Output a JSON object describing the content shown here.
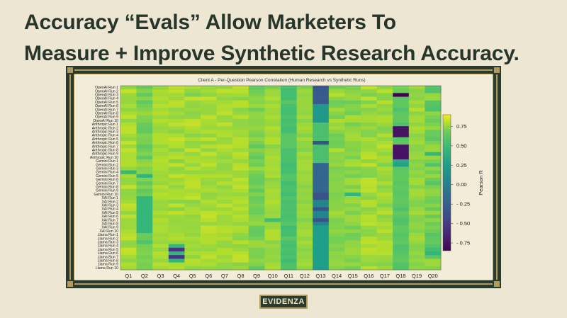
{
  "headline": {
    "line1": "Accuracy “Evals” Allow Marketers To",
    "line2": "Measure + Improve Synthetic Research Accuracy."
  },
  "logo_text": "EVIDENZA",
  "colors": {
    "background": "#ede6d3",
    "headline": "#27352b",
    "frame_dark": "#2a3a2c",
    "frame_gold": "#b29a5c"
  },
  "chart_data": {
    "type": "heatmap",
    "title": "Client A - Per-Question Pearson Correlation (Human Research vs Synthetic Runs)",
    "x_categories": [
      "Q1",
      "Q2",
      "Q3",
      "Q4",
      "Q5",
      "Q6",
      "Q7",
      "Q8",
      "Q9",
      "Q10",
      "Q11",
      "Q12",
      "Q13",
      "Q14",
      "Q15",
      "Q16",
      "Q17",
      "Q18",
      "Q19",
      "Q20"
    ],
    "y_categories": [
      "OpenAI Run 1",
      "OpenAI Run 2",
      "OpenAI Run 3",
      "OpenAI Run 4",
      "OpenAI Run 5",
      "OpenAI Run 6",
      "OpenAI Run 7",
      "OpenAI Run 8",
      "OpenAI Run 9",
      "OpenAI Run 10",
      "Anthropic Run 1",
      "Anthropic Run 2",
      "Anthropic Run 3",
      "Anthropic Run 4",
      "Anthropic Run 5",
      "Anthropic Run 6",
      "Anthropic Run 7",
      "Anthropic Run 8",
      "Anthropic Run 9",
      "Anthropic Run 10",
      "Gemini Run 1",
      "Gemini Run 2",
      "Gemini Run 3",
      "Gemini Run 4",
      "Gemini Run 5",
      "Gemini Run 6",
      "Gemini Run 7",
      "Gemini Run 8",
      "Gemini Run 9",
      "Gemini Run 10",
      "XAI Run 1",
      "XAI Run 2",
      "XAI Run 3",
      "XAI Run 4",
      "XAI Run 5",
      "XAI Run 6",
      "XAI Run 7",
      "XAI Run 8",
      "XAI Run 9",
      "XAI Run 10",
      "Llama Run 1",
      "Llama Run 2",
      "Llama Run 3",
      "Llama Run 4",
      "Llama Run 5",
      "Llama Run 6",
      "Llama Run 7",
      "Llama Run 8",
      "Llama Run 9",
      "Llama Run 10"
    ],
    "colorbar": {
      "label": "Pearson R",
      "ticks": [
        0.75,
        0.5,
        0.25,
        0.0,
        -0.25,
        -0.5,
        -0.75
      ],
      "tick_labels": [
        "0.75",
        "0.50",
        "0.25",
        "0.00",
        "- 0.25",
        "- 0.50",
        "- 0.75"
      ],
      "vmin": -0.85,
      "vmax": 0.9,
      "colormap": "viridis"
    },
    "values": [
      [
        0.74,
        0.68,
        0.74,
        0.8,
        0.78,
        0.75,
        0.76,
        0.81,
        0.65,
        0.71,
        0.54,
        0.72,
        -0.3,
        0.7,
        0.71,
        0.81,
        0.74,
        0.7,
        0.76,
        0.59
      ],
      [
        0.82,
        0.72,
        0.78,
        0.81,
        0.74,
        0.77,
        0.81,
        0.8,
        0.69,
        0.76,
        0.52,
        0.76,
        -0.3,
        0.76,
        0.73,
        0.74,
        0.8,
        0.69,
        0.73,
        0.58
      ],
      [
        0.76,
        0.65,
        0.77,
        0.77,
        0.71,
        0.74,
        0.77,
        0.77,
        0.71,
        0.76,
        0.52,
        0.74,
        -0.3,
        0.8,
        0.75,
        0.71,
        0.73,
        -0.85,
        0.74,
        0.75
      ],
      [
        0.75,
        0.73,
        0.79,
        0.76,
        0.82,
        0.82,
        0.74,
        0.73,
        0.74,
        0.79,
        0.53,
        0.75,
        -0.3,
        0.73,
        0.75,
        0.81,
        0.73,
        0.61,
        0.73,
        0.76
      ],
      [
        0.75,
        0.64,
        0.77,
        0.81,
        0.75,
        0.77,
        0.77,
        0.8,
        0.73,
        0.75,
        0.61,
        0.75,
        -0.3,
        0.69,
        0.69,
        0.72,
        0.8,
        0.64,
        0.77,
        0.61
      ],
      [
        0.78,
        0.7,
        0.8,
        0.8,
        0.74,
        0.75,
        0.79,
        0.8,
        0.76,
        0.78,
        0.54,
        0.75,
        0.2,
        0.7,
        0.73,
        0.78,
        0.74,
        0.63,
        0.74,
        0.58
      ],
      [
        0.74,
        0.72,
        0.77,
        0.74,
        0.76,
        0.75,
        0.79,
        0.73,
        0.69,
        0.76,
        0.52,
        0.75,
        0.2,
        0.77,
        0.72,
        0.72,
        0.76,
        0.57,
        0.8,
        0.58
      ],
      [
        0.78,
        0.76,
        0.8,
        0.77,
        0.73,
        0.75,
        0.81,
        0.75,
        0.74,
        0.76,
        0.53,
        0.74,
        0.2,
        0.73,
        0.69,
        0.75,
        0.73,
        0.63,
        0.73,
        0.74
      ],
      [
        0.81,
        0.72,
        0.76,
        0.74,
        0.74,
        0.81,
        0.75,
        0.8,
        0.74,
        0.78,
        0.57,
        0.77,
        0.2,
        0.7,
        0.78,
        0.77,
        0.78,
        0.64,
        0.77,
        0.71
      ],
      [
        0.74,
        0.71,
        0.79,
        0.78,
        0.81,
        0.78,
        0.76,
        0.74,
        0.73,
        0.76,
        0.53,
        0.73,
        0.2,
        0.78,
        0.77,
        0.77,
        0.78,
        0.63,
        0.77,
        0.67
      ],
      [
        0.79,
        0.67,
        0.77,
        0.81,
        0.82,
        0.77,
        0.81,
        0.74,
        0.73,
        0.75,
        0.57,
        0.76,
        0.55,
        0.75,
        0.7,
        0.73,
        0.76,
        0.57,
        0.74,
        0.71
      ],
      [
        0.81,
        0.65,
        0.75,
        0.76,
        0.79,
        0.76,
        0.76,
        0.75,
        0.75,
        0.79,
        0.52,
        0.77,
        0.55,
        0.77,
        0.74,
        0.76,
        0.72,
        -0.75,
        0.78,
        0.75
      ],
      [
        0.81,
        0.65,
        0.76,
        0.73,
        0.77,
        0.79,
        0.78,
        0.77,
        0.72,
        0.77,
        0.53,
        0.76,
        0.55,
        0.73,
        0.75,
        0.72,
        0.73,
        -0.75,
        0.77,
        0.67
      ],
      [
        0.77,
        0.72,
        0.79,
        0.78,
        0.73,
        0.74,
        0.79,
        0.76,
        0.7,
        0.76,
        0.62,
        0.72,
        0.55,
        0.69,
        0.77,
        0.72,
        0.79,
        -0.75,
        0.73,
        0.67
      ],
      [
        0.75,
        0.71,
        0.79,
        0.82,
        0.78,
        0.81,
        0.75,
        0.8,
        0.74,
        0.79,
        0.61,
        0.77,
        0.55,
        0.7,
        0.77,
        0.78,
        0.74,
        0.61,
        0.75,
        0.63
      ],
      [
        0.82,
        0.71,
        0.79,
        0.8,
        0.74,
        0.74,
        0.76,
        0.8,
        0.71,
        0.79,
        0.62,
        0.74,
        -0.35,
        0.69,
        0.73,
        0.76,
        0.78,
        0.63,
        0.77,
        0.71
      ],
      [
        0.76,
        0.64,
        0.75,
        0.79,
        0.75,
        0.8,
        0.81,
        0.79,
        0.65,
        0.73,
        0.61,
        0.74,
        0.55,
        0.7,
        0.73,
        0.75,
        0.81,
        -0.75,
        0.73,
        0.75
      ],
      [
        0.82,
        0.69,
        0.78,
        0.73,
        0.82,
        0.74,
        0.78,
        0.76,
        0.73,
        0.76,
        0.55,
        0.72,
        0.55,
        0.79,
        0.72,
        0.76,
        0.77,
        -0.75,
        0.73,
        0.76
      ],
      [
        0.78,
        0.72,
        0.76,
        0.78,
        0.75,
        0.82,
        0.76,
        0.81,
        0.7,
        0.76,
        0.56,
        0.77,
        0.55,
        0.73,
        0.74,
        0.8,
        0.74,
        -0.75,
        0.75,
        0.47
      ],
      [
        0.78,
        0.64,
        0.78,
        0.8,
        0.78,
        0.77,
        0.74,
        0.79,
        0.65,
        0.78,
        0.56,
        0.75,
        0.55,
        0.74,
        0.71,
        0.81,
        0.78,
        -0.75,
        0.76,
        0.75
      ],
      [
        0.79,
        0.73,
        0.8,
        0.73,
        0.79,
        0.78,
        0.77,
        0.75,
        0.71,
        0.77,
        0.56,
        0.77,
        0.55,
        0.73,
        0.77,
        0.74,
        0.77,
        0.35,
        0.72,
        0.71
      ],
      [
        0.79,
        0.76,
        0.78,
        0.81,
        0.75,
        0.81,
        0.74,
        0.8,
        0.69,
        0.77,
        0.51,
        0.77,
        -0.2,
        0.75,
        0.78,
        0.81,
        0.72,
        0.28,
        0.74,
        0.59
      ],
      [
        0.75,
        0.72,
        0.78,
        0.74,
        0.8,
        0.77,
        0.74,
        0.81,
        0.76,
        0.78,
        0.53,
        0.77,
        -0.2,
        0.71,
        0.71,
        0.73,
        0.78,
        0.62,
        0.72,
        0.74
      ],
      [
        0.46,
        0.73,
        0.77,
        0.75,
        0.74,
        0.75,
        0.76,
        0.76,
        0.71,
        0.77,
        0.53,
        0.75,
        -0.2,
        0.72,
        0.74,
        0.72,
        0.76,
        0.63,
        0.75,
        0.69
      ],
      [
        0.77,
        0.45,
        0.76,
        0.81,
        0.79,
        0.79,
        0.79,
        0.76,
        0.68,
        0.78,
        0.6,
        0.76,
        -0.2,
        0.73,
        0.7,
        0.72,
        0.75,
        0.64,
        0.73,
        0.75
      ],
      [
        0.74,
        0.72,
        0.77,
        0.76,
        0.8,
        0.76,
        0.75,
        0.81,
        0.66,
        0.73,
        0.59,
        0.76,
        -0.2,
        0.72,
        0.77,
        0.81,
        0.74,
        0.64,
        0.77,
        0.69
      ],
      [
        0.75,
        0.65,
        0.75,
        0.78,
        0.81,
        0.74,
        0.8,
        0.78,
        0.66,
        0.75,
        0.52,
        0.75,
        -0.2,
        0.73,
        0.77,
        0.81,
        0.78,
        0.61,
        0.77,
        0.61
      ],
      [
        0.82,
        0.72,
        0.8,
        0.74,
        0.81,
        0.77,
        0.74,
        0.82,
        0.71,
        0.76,
        0.55,
        0.73,
        -0.2,
        0.73,
        0.71,
        0.8,
        0.73,
        0.64,
        0.72,
        0.71
      ],
      [
        0.74,
        0.64,
        0.77,
        0.78,
        0.77,
        0.78,
        0.77,
        0.78,
        0.65,
        0.78,
        0.56,
        0.75,
        -0.2,
        0.73,
        0.76,
        0.81,
        0.75,
        0.62,
        0.77,
        0.74
      ],
      [
        0.74,
        0.69,
        0.8,
        0.78,
        0.79,
        0.74,
        0.76,
        0.75,
        0.72,
        0.77,
        0.51,
        0.74,
        -0.35,
        0.71,
        0.45,
        0.75,
        0.79,
        0.61,
        0.77,
        0.74
      ],
      [
        0.75,
        0.46,
        0.78,
        0.79,
        0.82,
        0.75,
        0.78,
        0.78,
        0.66,
        0.77,
        0.58,
        0.75,
        -0.35,
        0.72,
        0.75,
        0.73,
        0.77,
        0.64,
        0.75,
        0.7
      ],
      [
        0.77,
        0.46,
        0.75,
        0.73,
        0.73,
        0.79,
        0.76,
        0.8,
        0.68,
        0.79,
        0.55,
        0.73,
        0.05,
        0.73,
        0.77,
        0.8,
        0.76,
        0.64,
        0.72,
        0.68
      ],
      [
        0.82,
        0.46,
        0.76,
        0.81,
        0.75,
        0.77,
        0.81,
        0.77,
        0.71,
        0.77,
        0.56,
        0.76,
        0.05,
        0.73,
        0.72,
        0.79,
        0.72,
        0.62,
        0.72,
        0.73
      ],
      [
        0.8,
        0.46,
        0.75,
        0.73,
        0.78,
        0.75,
        0.76,
        0.8,
        0.69,
        0.76,
        0.55,
        0.75,
        -0.35,
        0.73,
        0.75,
        0.73,
        0.77,
        0.57,
        0.75,
        0.66
      ],
      [
        0.75,
        0.46,
        0.78,
        0.81,
        0.78,
        0.81,
        0.79,
        0.77,
        0.69,
        0.75,
        0.57,
        0.76,
        0.05,
        0.77,
        0.71,
        0.76,
        0.8,
        0.64,
        0.77,
        0.75
      ],
      [
        0.81,
        0.46,
        0.76,
        0.76,
        0.74,
        0.82,
        0.76,
        0.8,
        0.72,
        0.76,
        0.54,
        0.75,
        0.05,
        0.75,
        0.76,
        0.8,
        0.73,
        0.61,
        0.73,
        0.66
      ],
      [
        0.76,
        0.46,
        0.79,
        0.75,
        0.76,
        0.8,
        0.76,
        0.78,
        0.73,
        0.51,
        0.56,
        0.72,
        -0.35,
        0.71,
        0.76,
        0.79,
        0.75,
        0.58,
        0.72,
        0.74
      ],
      [
        0.76,
        0.46,
        0.77,
        0.75,
        0.75,
        0.75,
        0.76,
        0.74,
        0.75,
        0.75,
        0.6,
        0.75,
        0.05,
        0.72,
        0.74,
        0.81,
        0.79,
        0.59,
        0.74,
        0.68
      ],
      [
        0.76,
        0.46,
        0.78,
        0.76,
        0.75,
        0.82,
        0.79,
        0.79,
        0.66,
        0.75,
        0.51,
        0.75,
        0.25,
        0.72,
        0.69,
        0.75,
        0.77,
        0.64,
        0.74,
        0.71
      ],
      [
        0.78,
        0.46,
        0.78,
        0.76,
        0.76,
        0.81,
        0.8,
        0.78,
        0.65,
        0.79,
        0.53,
        0.77,
        0.25,
        0.74,
        0.74,
        0.73,
        0.8,
        0.63,
        0.72,
        0.68
      ],
      [
        0.8,
        0.67,
        0.76,
        0.78,
        0.74,
        0.79,
        0.77,
        0.74,
        0.66,
        0.79,
        0.53,
        0.77,
        0.25,
        0.72,
        0.69,
        0.73,
        0.75,
        0.6,
        0.76,
        0.6
      ],
      [
        0.82,
        0.67,
        0.77,
        0.79,
        0.78,
        0.79,
        0.79,
        0.73,
        0.7,
        0.79,
        0.62,
        0.74,
        0.25,
        0.7,
        0.7,
        0.8,
        0.76,
        0.62,
        0.77,
        0.64
      ],
      [
        0.74,
        0.58,
        0.75,
        0.75,
        0.76,
        0.79,
        0.75,
        0.8,
        0.76,
        0.73,
        0.55,
        0.77,
        0.25,
        0.7,
        0.74,
        0.81,
        0.8,
        0.64,
        0.75,
        0.66
      ],
      [
        0.74,
        0.7,
        0.79,
        0.45,
        0.77,
        0.76,
        0.74,
        0.74,
        0.76,
        0.76,
        0.52,
        0.75,
        0.25,
        0.73,
        0.74,
        0.77,
        0.79,
        0.57,
        0.72,
        0.6
      ],
      [
        0.82,
        0.71,
        0.75,
        -0.55,
        0.75,
        0.75,
        0.79,
        0.76,
        0.71,
        0.74,
        0.57,
        0.73,
        0.25,
        0.71,
        0.76,
        0.81,
        0.79,
        0.58,
        0.73,
        0.52
      ],
      [
        0.81,
        0.72,
        0.8,
        0.45,
        0.78,
        0.79,
        0.79,
        0.8,
        0.71,
        0.74,
        0.53,
        0.75,
        0.25,
        0.74,
        0.76,
        0.8,
        0.8,
        0.6,
        0.75,
        0.45
      ],
      [
        0.77,
        0.7,
        0.78,
        -0.55,
        0.74,
        0.81,
        0.76,
        0.82,
        0.71,
        0.75,
        0.56,
        0.74,
        0.25,
        0.73,
        0.73,
        0.76,
        0.76,
        0.63,
        0.73,
        0.61
      ],
      [
        0.74,
        0.72,
        0.75,
        0.45,
        0.8,
        0.77,
        0.78,
        0.81,
        0.74,
        0.74,
        0.51,
        0.76,
        0.25,
        0.74,
        0.71,
        0.76,
        0.75,
        0.64,
        0.75,
        0.76
      ],
      [
        0.79,
        0.7,
        0.8,
        0.78,
        0.79,
        0.78,
        0.74,
        0.73,
        0.72,
        0.77,
        0.56,
        0.77,
        0.25,
        0.75,
        0.75,
        0.73,
        0.72,
        0.59,
        0.72,
        0.76
      ],
      [
        0.77,
        0.71,
        0.77,
        0.79,
        0.74,
        0.75,
        0.74,
        0.76,
        0.65,
        0.78,
        0.58,
        0.74,
        0.25,
        0.73,
        0.7,
        0.8,
        0.76,
        0.59,
        0.74,
        0.73
      ]
    ]
  }
}
